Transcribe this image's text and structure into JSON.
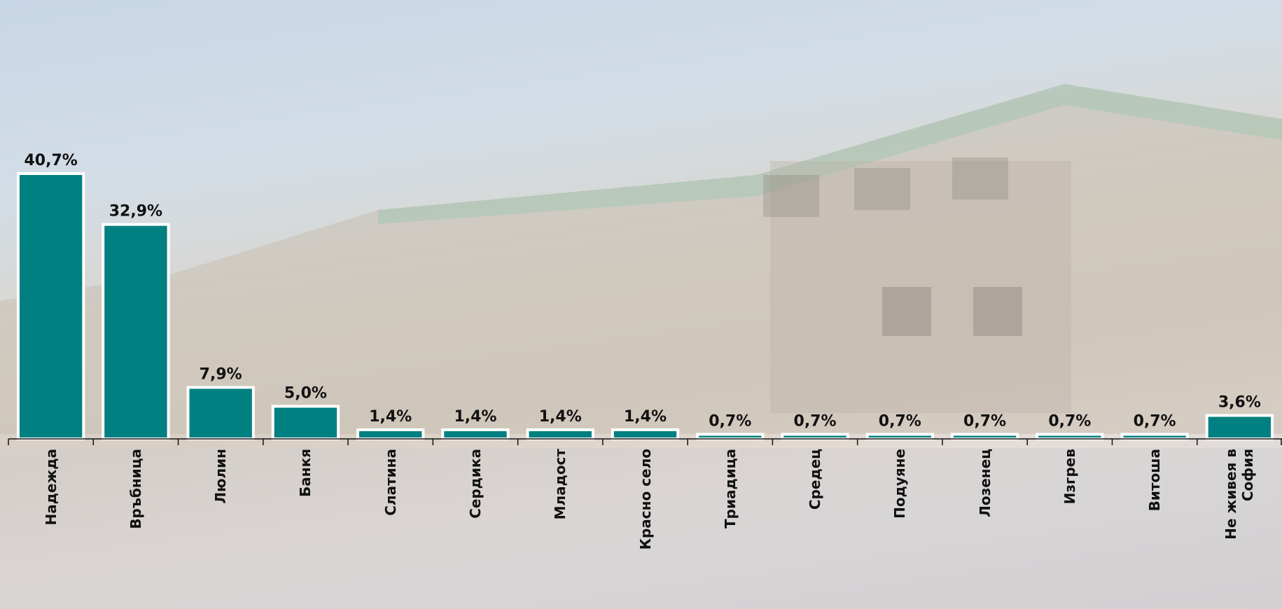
{
  "chart_data": {
    "type": "bar",
    "categories": [
      "Надежда",
      "Връбница",
      "Люлин",
      "Банкя",
      "Слатина",
      "Сердика",
      "Младост",
      "Красно село",
      "Триадица",
      "Средец",
      "Подуяне",
      "Лозенец",
      "Изгрев",
      "Витоша",
      "Не живея в София"
    ],
    "values": [
      40.7,
      32.9,
      7.9,
      5.0,
      1.4,
      1.4,
      1.4,
      1.4,
      0.7,
      0.7,
      0.7,
      0.7,
      0.7,
      0.7,
      3.6
    ],
    "value_labels": [
      "40,7%",
      "32,9%",
      "7,9%",
      "5,0%",
      "1,4%",
      "1,4%",
      "1,4%",
      "1,4%",
      "0,7%",
      "0,7%",
      "0,7%",
      "0,7%",
      "0,7%",
      "0,7%",
      "3,6%"
    ],
    "color": "#008080"
  }
}
